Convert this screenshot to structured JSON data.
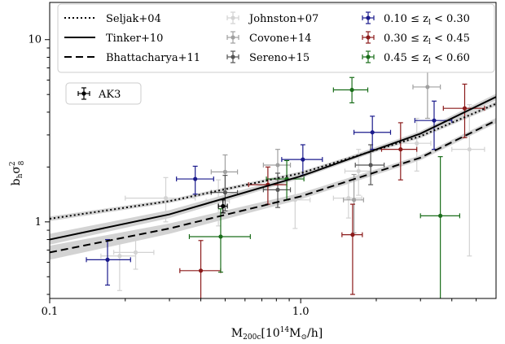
{
  "chart_data": {
    "type": "scatter",
    "xlabel_parts": {
      "m": "M",
      "sub": "200c",
      "bracket_open": "[10",
      "sup": "14",
      "msun": "M",
      "sun_sub": "⊙",
      "tail": "/h]"
    },
    "ylabel_parts": {
      "b": "b",
      "b_sub": "h",
      "sigma": "σ",
      "sup": "2",
      "sub": "8"
    },
    "x_scale": "log",
    "y_scale": "log",
    "xlim": [
      0.1,
      6.0
    ],
    "ylim": [
      0.38,
      16.0
    ],
    "x_ticks": [
      {
        "value": 0.1,
        "label": "0.1"
      },
      {
        "value": 1.0,
        "label": "1.0"
      }
    ],
    "y_ticks": [
      {
        "value": 1,
        "label": "1"
      },
      {
        "value": 10,
        "label": "10"
      }
    ],
    "grid": false,
    "legend_placement": "top",
    "models": [
      {
        "name": "Seljak+04",
        "style": "dotted",
        "color": "#000000",
        "x": [
          0.1,
          0.3,
          1.0,
          3.0,
          6.0
        ],
        "y": [
          1.04,
          1.3,
          1.85,
          2.95,
          4.45
        ],
        "band_lo": [
          1.01,
          1.27,
          1.81,
          2.88,
          4.32
        ],
        "band_hi": [
          1.07,
          1.33,
          1.89,
          3.02,
          4.58
        ]
      },
      {
        "name": "Tinker+10",
        "style": "solid",
        "color": "#000000",
        "x": [
          0.1,
          0.3,
          1.0,
          3.0,
          6.0
        ],
        "y": [
          0.8,
          1.1,
          1.78,
          3.05,
          4.85
        ],
        "band_lo": [
          0.75,
          1.05,
          1.73,
          2.96,
          4.65
        ],
        "band_hi": [
          0.86,
          1.16,
          1.84,
          3.15,
          5.05
        ]
      },
      {
        "name": "Bhattacharya+11",
        "style": "dashed",
        "color": "#000000",
        "x": [
          0.1,
          0.3,
          1.0,
          3.0,
          6.0
        ],
        "y": [
          0.68,
          0.92,
          1.38,
          2.25,
          3.6
        ],
        "band_lo": [
          0.62,
          0.86,
          1.33,
          2.18,
          3.48
        ],
        "band_hi": [
          0.74,
          0.98,
          1.44,
          2.32,
          3.72
        ]
      }
    ],
    "series": [
      {
        "name": "Johnston+07",
        "color": "#d3d3d3",
        "points": [
          {
            "x": 0.19,
            "y": 0.65,
            "xerr": [
              0.03,
              0.03
            ],
            "yerr": [
              0.23,
              0.2
            ]
          },
          {
            "x": 0.22,
            "y": 0.68,
            "xerr": [
              0.04,
              0.04
            ],
            "yerr": [
              0.13,
              0.12
            ]
          },
          {
            "x": 0.29,
            "y": 1.35,
            "xerr": [
              0.09,
              0.09
            ],
            "yerr": [
              0.35,
              0.4
            ]
          },
          {
            "x": 0.47,
            "y": 1.3,
            "xerr": [
              0.05,
              0.05
            ],
            "yerr": [
              0.35,
              0.4
            ]
          },
          {
            "x": 0.95,
            "y": 1.32,
            "xerr": [
              0.14,
              0.14
            ],
            "yerr": [
              0.4,
              0.45
            ]
          },
          {
            "x": 1.55,
            "y": 1.35,
            "xerr": [
              0.2,
              0.2
            ],
            "yerr": [
              0.3,
              0.35
            ]
          },
          {
            "x": 1.7,
            "y": 1.9,
            "xerr": [
              0.2,
              0.2
            ],
            "yerr": [
              0.5,
              0.6
            ]
          },
          {
            "x": 2.9,
            "y": 2.7,
            "xerr": [
              0.4,
              0.4
            ],
            "yerr": [
              0.8,
              1.0
            ]
          },
          {
            "x": 4.7,
            "y": 2.5,
            "xerr": [
              0.7,
              0.7
            ],
            "yerr": [
              1.85,
              1.9
            ]
          }
        ]
      },
      {
        "name": "Covone+14",
        "color": "#a0a0a0",
        "points": [
          {
            "x": 0.5,
            "y": 1.88,
            "xerr": [
              0.06,
              0.06
            ],
            "yerr": [
              0.35,
              0.45
            ]
          },
          {
            "x": 0.81,
            "y": 2.05,
            "xerr": [
              0.1,
              0.1
            ],
            "yerr": [
              0.35,
              0.45
            ]
          },
          {
            "x": 1.63,
            "y": 1.32,
            "xerr": [
              0.15,
              0.15
            ],
            "yerr": [
              0.45,
              0.5
            ]
          },
          {
            "x": 3.2,
            "y": 5.5,
            "xerr": [
              0.4,
              0.4
            ],
            "yerr": [
              1.8,
              2.2
            ]
          }
        ]
      },
      {
        "name": "Sereno+15",
        "color": "#555555",
        "points": [
          {
            "x": 0.5,
            "y": 1.45,
            "xerr": [
              0.06,
              0.06
            ],
            "yerr": [
              0.3,
              0.35
            ]
          },
          {
            "x": 0.81,
            "y": 1.5,
            "xerr": [
              0.1,
              0.1
            ],
            "yerr": [
              0.3,
              0.35
            ]
          },
          {
            "x": 1.9,
            "y": 2.05,
            "xerr": [
              0.25,
              0.25
            ],
            "yerr": [
              0.45,
              0.6
            ]
          }
        ]
      },
      {
        "name": "0.10 ≤ z_l < 0.30",
        "color": "#1a1a8c",
        "points": [
          {
            "x": 0.17,
            "y": 0.62,
            "xerr": [
              0.03,
              0.04
            ],
            "yerr": [
              0.17,
              0.18
            ]
          },
          {
            "x": 0.38,
            "y": 1.72,
            "xerr": [
              0.06,
              0.07
            ],
            "yerr": [
              0.3,
              0.3
            ]
          },
          {
            "x": 1.02,
            "y": 2.2,
            "xerr": [
              0.18,
              0.2
            ],
            "yerr": [
              0.4,
              0.45
            ]
          },
          {
            "x": 1.93,
            "y": 3.1,
            "xerr": [
              0.3,
              0.35
            ],
            "yerr": [
              0.6,
              0.7
            ]
          },
          {
            "x": 3.4,
            "y": 3.6,
            "xerr": [
              0.55,
              0.6
            ],
            "yerr": [
              1.1,
              1.0
            ]
          }
        ]
      },
      {
        "name": "0.30 ≤ z_l < 0.45",
        "color": "#8b1a1a",
        "points": [
          {
            "x": 0.4,
            "y": 0.54,
            "xerr": [
              0.07,
              0.08
            ],
            "yerr": [
              0.24,
              0.25
            ]
          },
          {
            "x": 0.74,
            "y": 1.6,
            "xerr": [
              0.12,
              0.14
            ],
            "yerr": [
              0.35,
              0.4
            ]
          },
          {
            "x": 1.61,
            "y": 0.85,
            "xerr": [
              0.15,
              0.15
            ],
            "yerr": [
              0.45,
              0.4
            ]
          },
          {
            "x": 2.5,
            "y": 2.5,
            "xerr": [
              0.4,
              0.4
            ],
            "yerr": [
              0.8,
              1.0
            ]
          },
          {
            "x": 4.5,
            "y": 4.2,
            "xerr": [
              0.8,
              0.9
            ],
            "yerr": [
              1.3,
              1.5
            ]
          }
        ]
      },
      {
        "name": "0.45 ≤ z_l < 0.60",
        "color": "#1a6e1a",
        "points": [
          {
            "x": 0.48,
            "y": 0.83,
            "xerr": [
              0.12,
              0.15
            ],
            "yerr": [
              0.3,
              0.35
            ]
          },
          {
            "x": 0.88,
            "y": 1.72,
            "xerr": [
              0.15,
              0.15
            ],
            "yerr": [
              0.4,
              0.45
            ]
          },
          {
            "x": 1.6,
            "y": 5.3,
            "xerr": [
              0.25,
              0.25
            ],
            "yerr": [
              0.8,
              0.9
            ]
          },
          {
            "x": 3.6,
            "y": 1.08,
            "xerr": [
              0.6,
              0.7
            ],
            "yerr": [
              0.75,
              1.2
            ]
          }
        ]
      },
      {
        "name": "AK3",
        "color": "#000000",
        "points": [
          {
            "x": 0.49,
            "y": 1.22,
            "xerr": [
              0.02,
              0.02
            ],
            "yerr": [
              0.1,
              0.1
            ]
          }
        ]
      }
    ],
    "legend": {
      "col1": [
        "Seljak+04",
        "Tinker+10",
        "Bhattacharya+11"
      ],
      "col2": [
        "Johnston+07",
        "Covone+14",
        "Sereno+15"
      ],
      "col3_parts": [
        {
          "lo": "0.10 ≤ z",
          "sub": "l",
          "hi": " < 0.30"
        },
        {
          "lo": "0.30 ≤ z",
          "sub": "l",
          "hi": " < 0.45"
        },
        {
          "lo": "0.45 ≤ z",
          "sub": "l",
          "hi": " < 0.60"
        }
      ],
      "extra": "AK3"
    }
  }
}
